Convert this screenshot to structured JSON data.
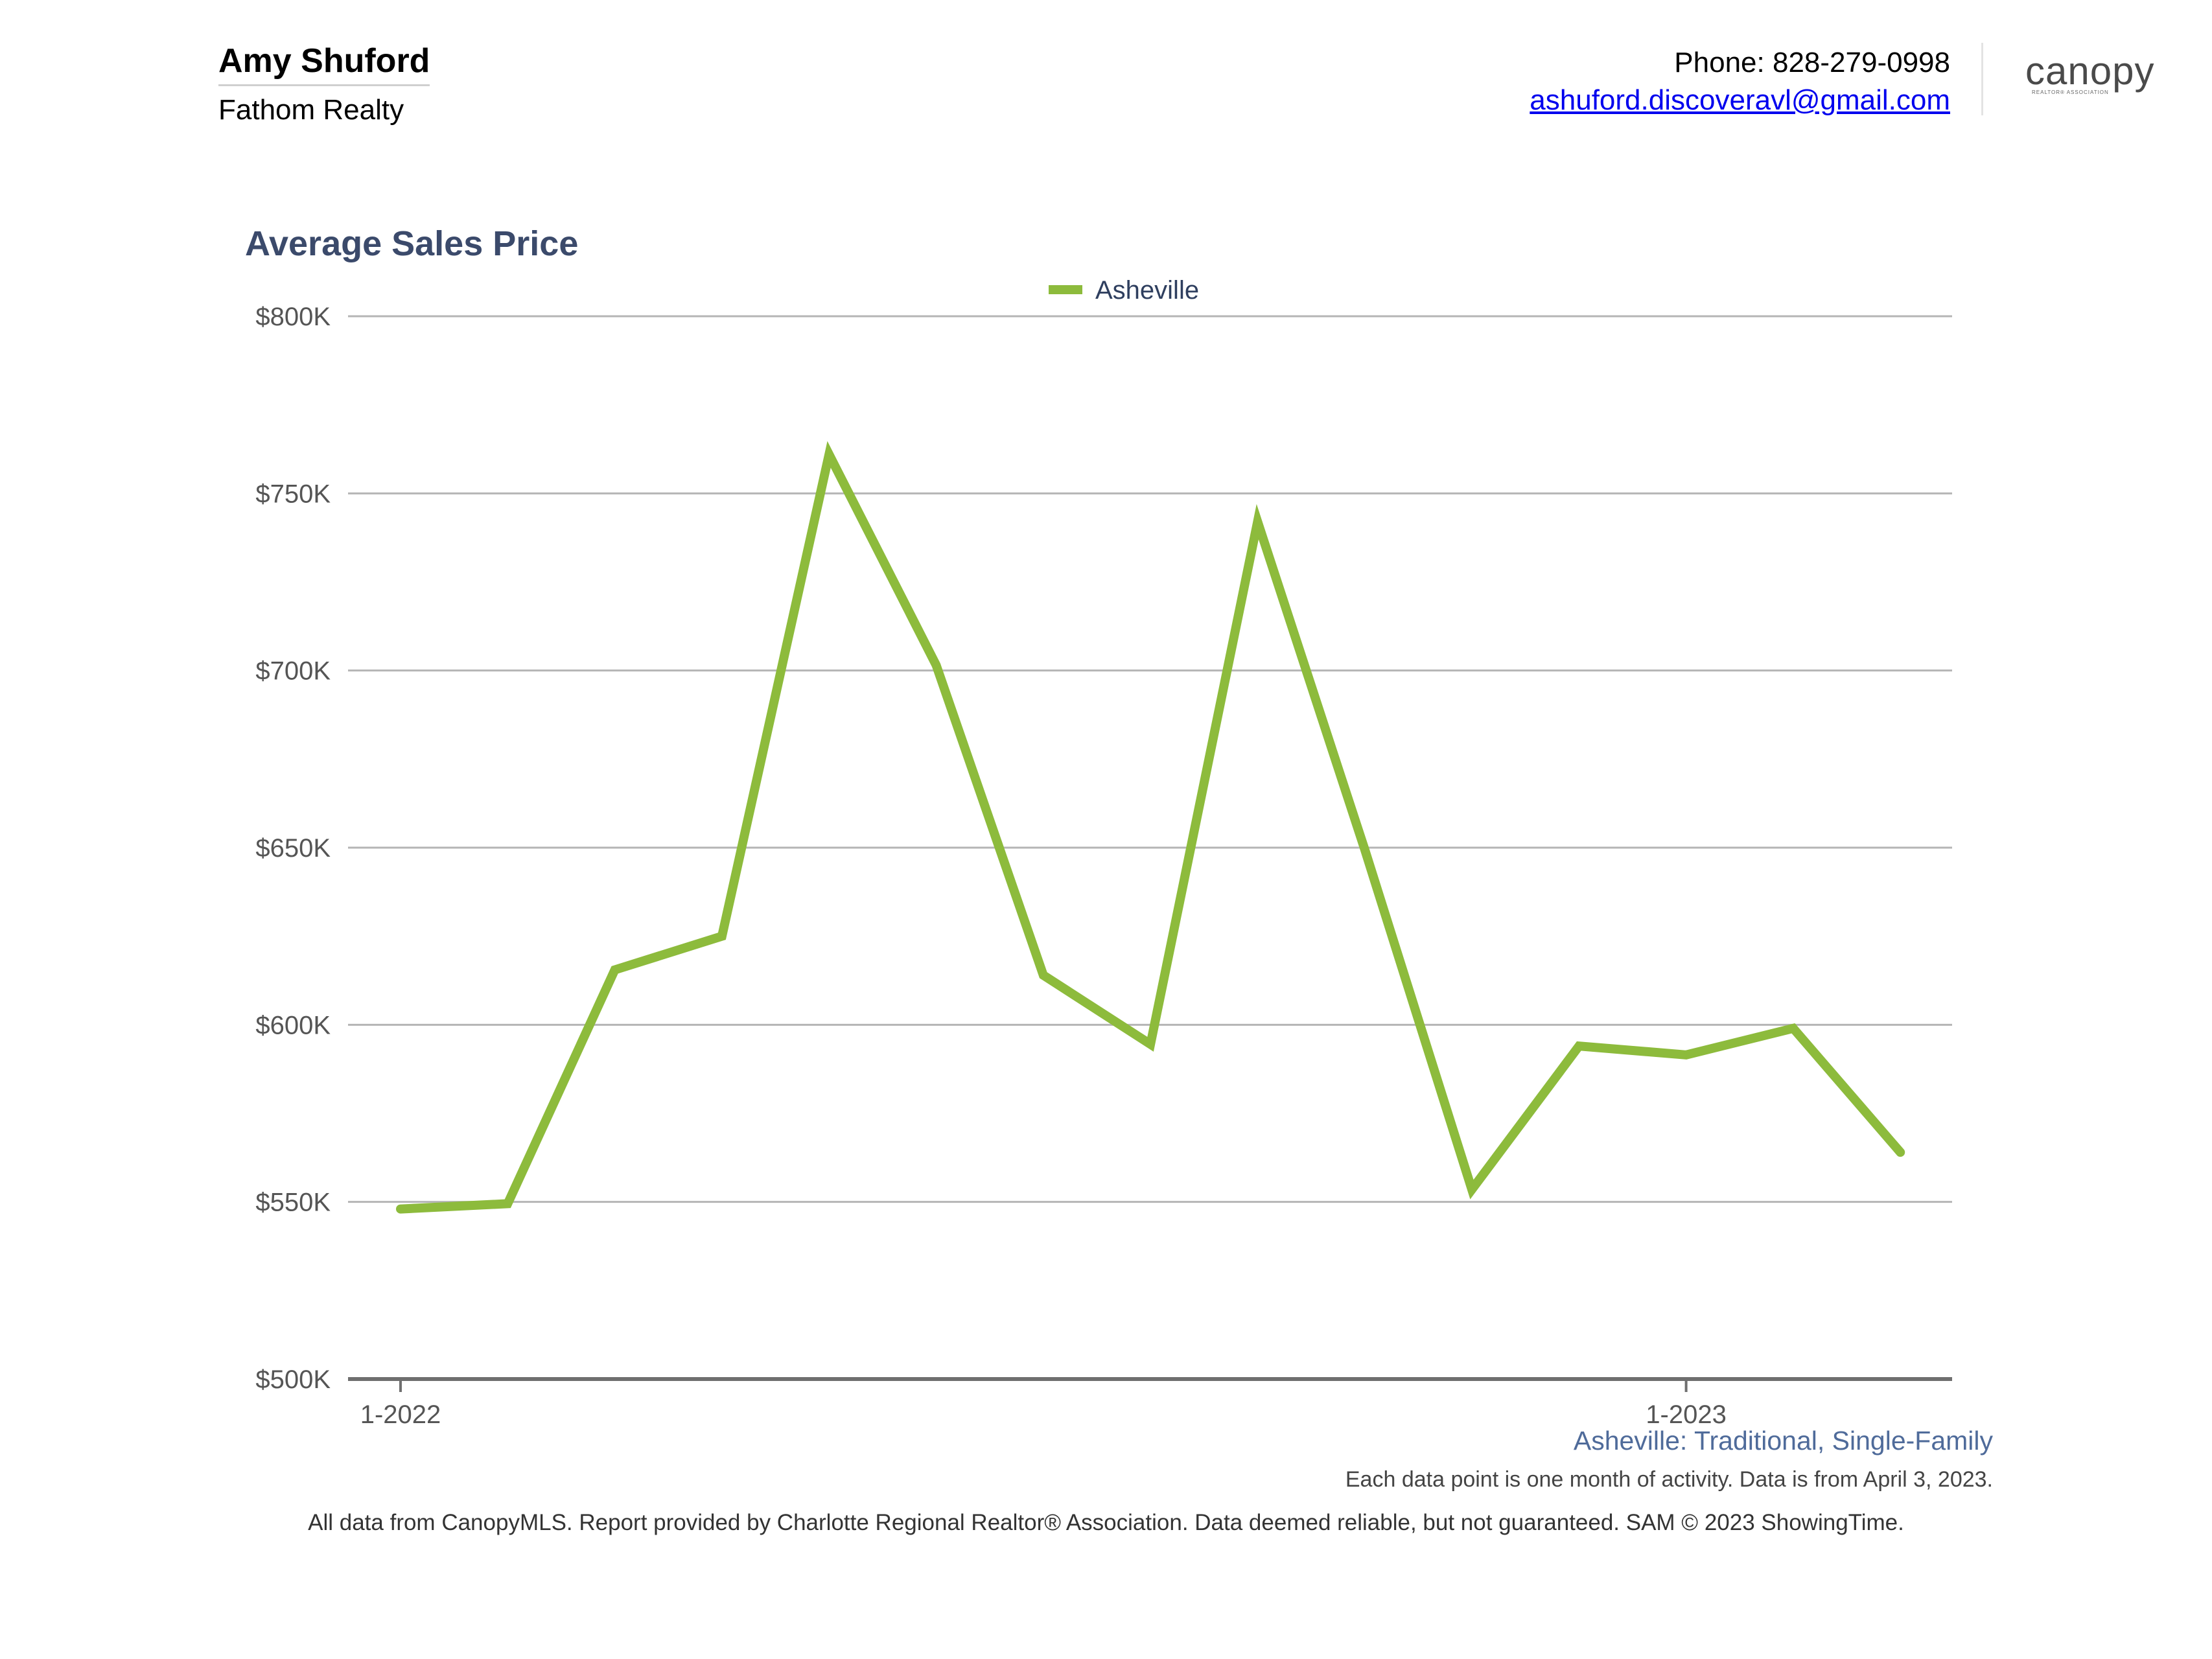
{
  "header": {
    "agent_name": "Amy Shuford",
    "company": "Fathom Realty",
    "phone": "Phone: 828-279-0998",
    "email": "ashuford.discoveravl@gmail.com",
    "logo_text": "canopy",
    "logo_sub": "REALTOR® ASSOCIATION"
  },
  "chart_data": {
    "type": "line",
    "title": "Average Sales Price",
    "xlabel": "",
    "ylabel": "",
    "ylim": [
      500000,
      800000
    ],
    "y_ticks": [
      {
        "value": 500000,
        "label": "$500K"
      },
      {
        "value": 550000,
        "label": "$550K"
      },
      {
        "value": 600000,
        "label": "$600K"
      },
      {
        "value": 650000,
        "label": "$650K"
      },
      {
        "value": 700000,
        "label": "$700K"
      },
      {
        "value": 750000,
        "label": "$750K"
      },
      {
        "value": 800000,
        "label": "$800K"
      }
    ],
    "x": [
      "1-2022",
      "2-2022",
      "3-2022",
      "4-2022",
      "5-2022",
      "6-2022",
      "7-2022",
      "8-2022",
      "9-2022",
      "10-2022",
      "11-2022",
      "12-2022",
      "1-2023",
      "2-2023",
      "3-2023"
    ],
    "x_tick_labels": [
      {
        "index": 0,
        "label": "1-2022"
      },
      {
        "index": 12,
        "label": "1-2023"
      }
    ],
    "series": [
      {
        "name": "Asheville",
        "color": "#8dbb3c",
        "values": [
          548000,
          549500,
          615500,
          625000,
          761000,
          701500,
          614000,
          594500,
          742000,
          649500,
          553500,
          594000,
          591500,
          599000,
          564000
        ]
      }
    ],
    "legend_position": "top-center",
    "grid": true
  },
  "captions": {
    "series_desc": "Asheville: Traditional, Single-Family",
    "note": "Each data point is one month of activity. Data is from April 3, 2023.",
    "footer": "All data from CanopyMLS. Report provided by Charlotte Regional Realtor® Association. Data deemed reliable, but not guaranteed. SAM © 2023 ShowingTime."
  }
}
